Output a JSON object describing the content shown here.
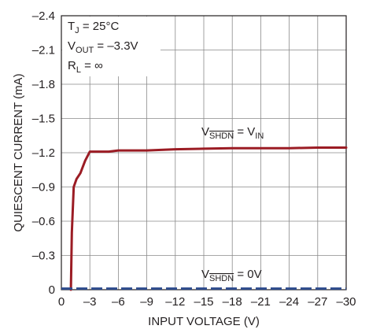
{
  "chart_data": {
    "type": "line",
    "title": "",
    "xlabel": "INPUT VOLTAGE (V)",
    "ylabel": "QUIESCENT CURRENT (mA)",
    "xlim": [
      0,
      -30
    ],
    "ylim": [
      0,
      -2.4
    ],
    "xticks": [
      0,
      -3,
      -6,
      -9,
      -12,
      -15,
      -18,
      -21,
      -24,
      -27,
      -30
    ],
    "yticks": [
      0,
      -0.3,
      -0.6,
      -0.9,
      -1.2,
      -1.5,
      -1.8,
      -2.1,
      -2.4
    ],
    "xtick_labels": [
      "0",
      "–3",
      "–6",
      "–9",
      "–12",
      "–15",
      "–18",
      "–21",
      "–24",
      "–27",
      "–30"
    ],
    "ytick_labels": [
      "0",
      "–0.3",
      "–0.6",
      "–0.9",
      "–1.2",
      "–1.5",
      "–1.8",
      "–2.1",
      "–2.4"
    ],
    "grid": true,
    "conditions": {
      "tj": {
        "base": "T",
        "sub": "J",
        "rest": " = 25°C"
      },
      "vout": {
        "base": "V",
        "sub": "OUT",
        "rest": " = –3.3V"
      },
      "rl": {
        "base": "R",
        "sub": "L",
        "rest": " = ∞"
      }
    },
    "series": [
      {
        "label_parts": {
          "base": "V",
          "sub": "SHDN",
          "mid": " = V",
          "sub2": "IN"
        },
        "color": "#9b1c24",
        "style": "solid",
        "x": [
          -1.0,
          -1.1,
          -1.3,
          -1.6,
          -2.0,
          -2.5,
          -3.0,
          -4.0,
          -5.0,
          -6.0,
          -7.0,
          -9.0,
          -12.0,
          -15.0,
          -18.0,
          -21.0,
          -24.0,
          -27.0,
          -30.0
        ],
        "y": [
          0.0,
          -0.5,
          -0.9,
          -0.97,
          -1.02,
          -1.13,
          -1.21,
          -1.21,
          -1.21,
          -1.22,
          -1.22,
          -1.22,
          -1.23,
          -1.235,
          -1.24,
          -1.24,
          -1.24,
          -1.245,
          -1.245
        ]
      },
      {
        "label_parts": {
          "base": "V",
          "sub": "SHDN",
          "rest": " = 0V"
        },
        "color": "#2c4a8c",
        "style": "dashed",
        "x": [
          0,
          -30
        ],
        "y": [
          -0.01,
          -0.01
        ]
      }
    ]
  }
}
